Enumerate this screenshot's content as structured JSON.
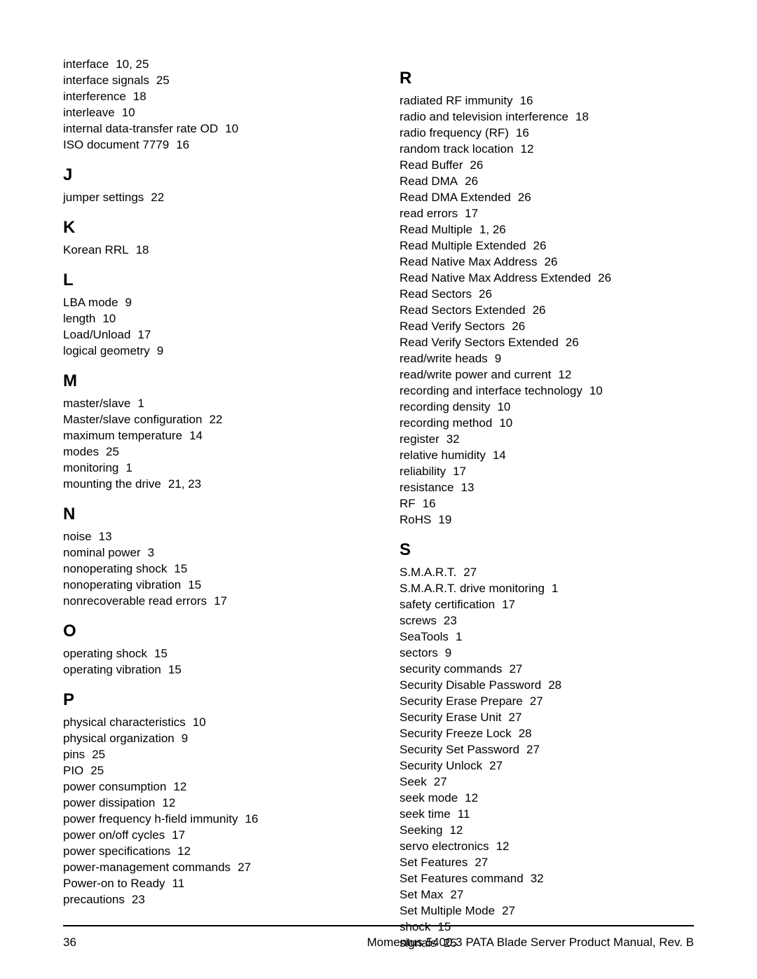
{
  "page": {
    "number": "36",
    "footer_text": "Momentus 5400.3 PATA Blade Server Product Manual, Rev. B"
  },
  "index": {
    "left": [
      {
        "type": "entry",
        "term": "interface",
        "pages": "10,  25"
      },
      {
        "type": "entry",
        "term": "interface signals",
        "pages": "25"
      },
      {
        "type": "entry",
        "term": "interference",
        "pages": "18"
      },
      {
        "type": "entry",
        "term": "interleave",
        "pages": "10"
      },
      {
        "type": "entry",
        "term": "internal data-transfer rate OD",
        "pages": "10"
      },
      {
        "type": "entry",
        "term": "ISO document 7779",
        "pages": "16"
      },
      {
        "type": "letter",
        "label": "J"
      },
      {
        "type": "entry",
        "term": "jumper settings",
        "pages": "22"
      },
      {
        "type": "letter",
        "label": "K"
      },
      {
        "type": "entry",
        "term": "Korean RRL",
        "pages": "18"
      },
      {
        "type": "letter",
        "label": "L"
      },
      {
        "type": "entry",
        "term": "LBA mode",
        "pages": "9"
      },
      {
        "type": "entry",
        "term": "length",
        "pages": "10"
      },
      {
        "type": "entry",
        "term": "Load/Unload",
        "pages": "17"
      },
      {
        "type": "entry",
        "term": "logical geometry",
        "pages": "9"
      },
      {
        "type": "letter",
        "label": "M"
      },
      {
        "type": "entry",
        "term": "master/slave",
        "pages": "1"
      },
      {
        "type": "entry",
        "term": "Master/slave configuration",
        "pages": "22"
      },
      {
        "type": "entry",
        "term": "maximum temperature",
        "pages": "14"
      },
      {
        "type": "entry",
        "term": "modes",
        "pages": "25"
      },
      {
        "type": "entry",
        "term": "monitoring",
        "pages": "1"
      },
      {
        "type": "entry",
        "term": "mounting the drive",
        "pages": "21,  23"
      },
      {
        "type": "letter",
        "label": "N"
      },
      {
        "type": "entry",
        "term": "noise",
        "pages": "13"
      },
      {
        "type": "entry",
        "term": "nominal power",
        "pages": "3"
      },
      {
        "type": "entry",
        "term": "nonoperating shock",
        "pages": "15"
      },
      {
        "type": "entry",
        "term": "nonoperating vibration",
        "pages": "15"
      },
      {
        "type": "entry",
        "term": "nonrecoverable read errors",
        "pages": "17"
      },
      {
        "type": "letter",
        "label": "O"
      },
      {
        "type": "entry",
        "term": "operating shock",
        "pages": "15"
      },
      {
        "type": "entry",
        "term": "operating vibration",
        "pages": "15"
      },
      {
        "type": "letter",
        "label": "P"
      },
      {
        "type": "entry",
        "term": "physical characteristics",
        "pages": "10"
      },
      {
        "type": "entry",
        "term": "physical organization",
        "pages": "9"
      },
      {
        "type": "entry",
        "term": "pins",
        "pages": "25"
      },
      {
        "type": "entry",
        "term": "PIO",
        "pages": "25"
      },
      {
        "type": "entry",
        "term": "power consumption",
        "pages": "12"
      },
      {
        "type": "entry",
        "term": "power dissipation",
        "pages": "12"
      },
      {
        "type": "entry",
        "term": "power frequency h-field immunity",
        "pages": "16"
      },
      {
        "type": "entry",
        "term": "power on/off cycles",
        "pages": "17"
      },
      {
        "type": "entry",
        "term": "power specifications",
        "pages": "12"
      },
      {
        "type": "entry",
        "term": "power-management commands",
        "pages": "27"
      },
      {
        "type": "entry",
        "term": "Power-on to Ready",
        "pages": "11"
      },
      {
        "type": "entry",
        "term": "precautions",
        "pages": "23"
      }
    ],
    "right": [
      {
        "type": "letter",
        "label": "R"
      },
      {
        "type": "entry",
        "term": "radiated RF immunity",
        "pages": "16"
      },
      {
        "type": "entry",
        "term": "radio and television interference",
        "pages": "18"
      },
      {
        "type": "entry",
        "term": "radio frequency (RF)",
        "pages": "16"
      },
      {
        "type": "entry",
        "term": "random track location",
        "pages": "12"
      },
      {
        "type": "entry",
        "term": "Read Buffer",
        "pages": "26"
      },
      {
        "type": "entry",
        "term": "Read DMA",
        "pages": "26"
      },
      {
        "type": "entry",
        "term": "Read DMA Extended",
        "pages": "26"
      },
      {
        "type": "entry",
        "term": "read errors",
        "pages": "17"
      },
      {
        "type": "entry",
        "term": "Read Multiple",
        "pages": "1,  26"
      },
      {
        "type": "entry",
        "term": "Read Multiple Extended",
        "pages": "26"
      },
      {
        "type": "entry",
        "term": "Read Native Max Address",
        "pages": "26"
      },
      {
        "type": "entry",
        "term": "Read Native Max Address Extended",
        "pages": "26"
      },
      {
        "type": "entry",
        "term": "Read Sectors",
        "pages": "26"
      },
      {
        "type": "entry",
        "term": "Read Sectors Extended",
        "pages": "26"
      },
      {
        "type": "entry",
        "term": "Read Verify Sectors",
        "pages": "26"
      },
      {
        "type": "entry",
        "term": "Read Verify Sectors Extended",
        "pages": "26"
      },
      {
        "type": "entry",
        "term": "read/write heads",
        "pages": "9"
      },
      {
        "type": "entry",
        "term": "read/write power and current",
        "pages": "12"
      },
      {
        "type": "entry",
        "term": "recording and interface technology",
        "pages": "10"
      },
      {
        "type": "entry",
        "term": "recording density",
        "pages": "10"
      },
      {
        "type": "entry",
        "term": "recording method",
        "pages": "10"
      },
      {
        "type": "entry",
        "term": "register",
        "pages": "32"
      },
      {
        "type": "entry",
        "term": "relative humidity",
        "pages": "14"
      },
      {
        "type": "entry",
        "term": "reliability",
        "pages": "17"
      },
      {
        "type": "entry",
        "term": "resistance",
        "pages": "13"
      },
      {
        "type": "entry",
        "term": "RF",
        "pages": "16"
      },
      {
        "type": "entry",
        "term": "RoHS",
        "pages": "19"
      },
      {
        "type": "letter",
        "label": "S"
      },
      {
        "type": "entry",
        "term": "S.M.A.R.T.",
        "pages": "27"
      },
      {
        "type": "entry",
        "term": "S.M.A.R.T. drive monitoring",
        "pages": "1"
      },
      {
        "type": "entry",
        "term": "safety certification",
        "pages": "17"
      },
      {
        "type": "entry",
        "term": "screws",
        "pages": "23"
      },
      {
        "type": "entry",
        "term": "SeaTools",
        "pages": "1"
      },
      {
        "type": "entry",
        "term": "sectors",
        "pages": "9"
      },
      {
        "type": "entry",
        "term": "security commands",
        "pages": "27"
      },
      {
        "type": "entry",
        "term": "Security Disable Password",
        "pages": "28"
      },
      {
        "type": "entry",
        "term": "Security Erase Prepare",
        "pages": "27"
      },
      {
        "type": "entry",
        "term": "Security Erase Unit",
        "pages": "27"
      },
      {
        "type": "entry",
        "term": "Security Freeze Lock",
        "pages": "28"
      },
      {
        "type": "entry",
        "term": "Security Set Password",
        "pages": "27"
      },
      {
        "type": "entry",
        "term": "Security Unlock",
        "pages": "27"
      },
      {
        "type": "entry",
        "term": "Seek",
        "pages": "27"
      },
      {
        "type": "entry",
        "term": "seek mode",
        "pages": "12"
      },
      {
        "type": "entry",
        "term": "seek time",
        "pages": "11"
      },
      {
        "type": "entry",
        "term": "Seeking",
        "pages": "12"
      },
      {
        "type": "entry",
        "term": "servo electronics",
        "pages": "12"
      },
      {
        "type": "entry",
        "term": "Set Features",
        "pages": "27"
      },
      {
        "type": "entry",
        "term": "Set Features command",
        "pages": "32"
      },
      {
        "type": "entry",
        "term": "Set Max",
        "pages": "27"
      },
      {
        "type": "entry",
        "term": "Set Multiple Mode",
        "pages": "27"
      },
      {
        "type": "entry",
        "term": "shock",
        "pages": "15"
      },
      {
        "type": "entry",
        "term": "signals",
        "pages": "25"
      }
    ]
  }
}
